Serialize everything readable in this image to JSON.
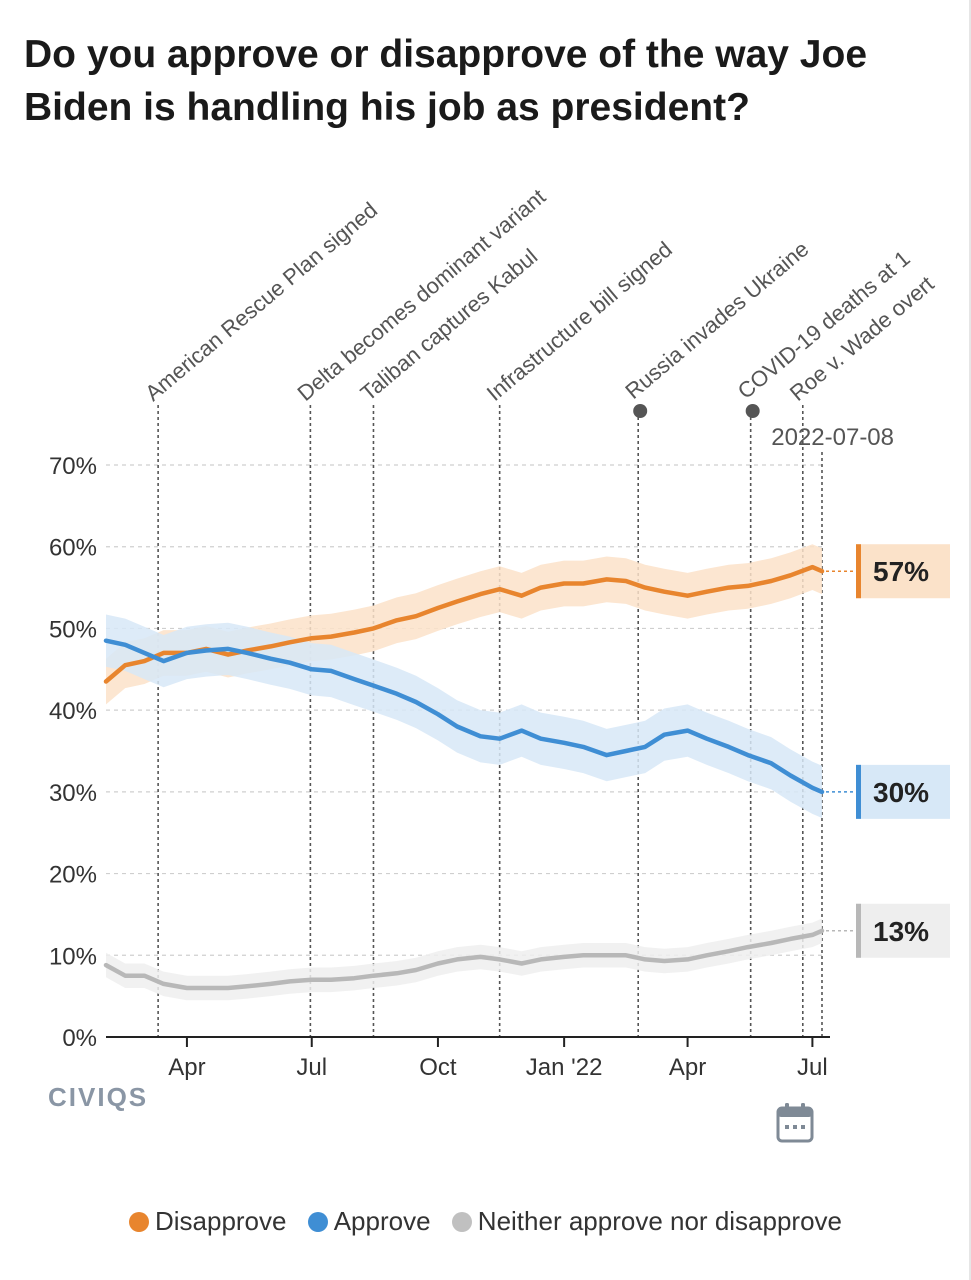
{
  "chart_data": {
    "type": "line",
    "title": "Do you approve or disapprove of the way Joe Biden is handling his job as president?",
    "y_ticks": [
      "0%",
      "10%",
      "20%",
      "30%",
      "40%",
      "50%",
      "60%",
      "70%"
    ],
    "ylim": [
      0,
      70
    ],
    "x_range": [
      "2021-02-01",
      "2022-07-08"
    ],
    "x_ticks": [
      {
        "date": "2021-04-01",
        "label": "Apr"
      },
      {
        "date": "2021-07-01",
        "label": "Jul"
      },
      {
        "date": "2021-10-01",
        "label": "Oct"
      },
      {
        "date": "2022-01-01",
        "label": "Jan '22"
      },
      {
        "date": "2022-04-01",
        "label": "Apr"
      },
      {
        "date": "2022-07-01",
        "label": "Jul"
      }
    ],
    "current_date_label": "2022-07-08",
    "events": [
      {
        "date": "2021-03-11",
        "label": "American Rescue Plan signed",
        "marker": false
      },
      {
        "date": "2021-06-30",
        "label": "Delta becomes dominant variant",
        "marker": false
      },
      {
        "date": "2021-08-15",
        "label": "Taliban captures Kabul",
        "marker": false
      },
      {
        "date": "2021-11-15",
        "label": "Infrastructure bill signed",
        "marker": false
      },
      {
        "date": "2022-02-24",
        "label": "Russia invades Ukraine",
        "marker": true
      },
      {
        "date": "2022-05-17",
        "label": "COVID-19 deaths at 1",
        "marker": true
      },
      {
        "date": "2022-06-24",
        "label": "Roe v. Wade overt",
        "marker": false
      }
    ],
    "series": [
      {
        "name": "Disapprove",
        "color": "#e8852e",
        "band_color": "#fbe2c9",
        "end_label": "57%",
        "band_half_width": 2.8,
        "points": [
          [
            "2021-02-01",
            43.5
          ],
          [
            "2021-02-15",
            45.5
          ],
          [
            "2021-03-01",
            46
          ],
          [
            "2021-03-15",
            47
          ],
          [
            "2021-04-01",
            47
          ],
          [
            "2021-04-15",
            47.5
          ],
          [
            "2021-05-01",
            46.8
          ],
          [
            "2021-05-15",
            47.3
          ],
          [
            "2021-06-01",
            47.8
          ],
          [
            "2021-06-15",
            48.3
          ],
          [
            "2021-07-01",
            48.8
          ],
          [
            "2021-07-15",
            49
          ],
          [
            "2021-08-01",
            49.5
          ],
          [
            "2021-08-15",
            50
          ],
          [
            "2021-09-01",
            51
          ],
          [
            "2021-09-15",
            51.5
          ],
          [
            "2021-10-01",
            52.5
          ],
          [
            "2021-10-15",
            53.3
          ],
          [
            "2021-11-01",
            54.2
          ],
          [
            "2021-11-15",
            54.8
          ],
          [
            "2021-12-01",
            54
          ],
          [
            "2021-12-15",
            55
          ],
          [
            "2022-01-01",
            55.5
          ],
          [
            "2022-01-15",
            55.5
          ],
          [
            "2022-02-01",
            56
          ],
          [
            "2022-02-15",
            55.8
          ],
          [
            "2022-03-01",
            55
          ],
          [
            "2022-03-15",
            54.5
          ],
          [
            "2022-04-01",
            54
          ],
          [
            "2022-04-15",
            54.5
          ],
          [
            "2022-05-01",
            55
          ],
          [
            "2022-05-15",
            55.2
          ],
          [
            "2022-06-01",
            55.8
          ],
          [
            "2022-06-15",
            56.5
          ],
          [
            "2022-07-01",
            57.5
          ],
          [
            "2022-07-08",
            57
          ]
        ]
      },
      {
        "name": "Approve",
        "color": "#3f8ed4",
        "band_color": "#d7e8f7",
        "end_label": "30%",
        "band_half_width": 3.2,
        "points": [
          [
            "2021-02-01",
            48.5
          ],
          [
            "2021-02-15",
            48
          ],
          [
            "2021-03-01",
            47
          ],
          [
            "2021-03-15",
            46
          ],
          [
            "2021-04-01",
            47
          ],
          [
            "2021-04-15",
            47.3
          ],
          [
            "2021-05-01",
            47.5
          ],
          [
            "2021-05-15",
            47
          ],
          [
            "2021-06-01",
            46.3
          ],
          [
            "2021-06-15",
            45.8
          ],
          [
            "2021-07-01",
            45
          ],
          [
            "2021-07-15",
            44.8
          ],
          [
            "2021-08-01",
            43.8
          ],
          [
            "2021-08-15",
            43
          ],
          [
            "2021-09-01",
            42
          ],
          [
            "2021-09-15",
            41
          ],
          [
            "2021-10-01",
            39.5
          ],
          [
            "2021-10-15",
            38
          ],
          [
            "2021-11-01",
            36.8
          ],
          [
            "2021-11-15",
            36.5
          ],
          [
            "2021-12-01",
            37.5
          ],
          [
            "2021-12-15",
            36.5
          ],
          [
            "2022-01-01",
            36
          ],
          [
            "2022-01-15",
            35.5
          ],
          [
            "2022-02-01",
            34.5
          ],
          [
            "2022-02-15",
            35
          ],
          [
            "2022-03-01",
            35.5
          ],
          [
            "2022-03-15",
            37
          ],
          [
            "2022-04-01",
            37.5
          ],
          [
            "2022-04-15",
            36.5
          ],
          [
            "2022-05-01",
            35.5
          ],
          [
            "2022-05-15",
            34.5
          ],
          [
            "2022-06-01",
            33.5
          ],
          [
            "2022-06-15",
            32
          ],
          [
            "2022-07-01",
            30.5
          ],
          [
            "2022-07-08",
            30
          ]
        ]
      },
      {
        "name": "Neither approve nor disapprove",
        "color": "#b8b8b8",
        "band_color": "#eeeeee",
        "end_label": "13%",
        "band_half_width": 1.5,
        "points": [
          [
            "2021-02-01",
            8.8
          ],
          [
            "2021-02-15",
            7.5
          ],
          [
            "2021-03-01",
            7.5
          ],
          [
            "2021-03-15",
            6.5
          ],
          [
            "2021-04-01",
            6
          ],
          [
            "2021-04-15",
            6
          ],
          [
            "2021-05-01",
            6
          ],
          [
            "2021-05-15",
            6.2
          ],
          [
            "2021-06-01",
            6.5
          ],
          [
            "2021-06-15",
            6.8
          ],
          [
            "2021-07-01",
            7
          ],
          [
            "2021-07-15",
            7
          ],
          [
            "2021-08-01",
            7.2
          ],
          [
            "2021-08-15",
            7.5
          ],
          [
            "2021-09-01",
            7.8
          ],
          [
            "2021-09-15",
            8.2
          ],
          [
            "2021-10-01",
            9
          ],
          [
            "2021-10-15",
            9.5
          ],
          [
            "2021-11-01",
            9.8
          ],
          [
            "2021-11-15",
            9.5
          ],
          [
            "2021-12-01",
            9
          ],
          [
            "2021-12-15",
            9.5
          ],
          [
            "2022-01-01",
            9.8
          ],
          [
            "2022-01-15",
            10
          ],
          [
            "2022-02-01",
            10
          ],
          [
            "2022-02-15",
            10
          ],
          [
            "2022-03-01",
            9.5
          ],
          [
            "2022-03-15",
            9.3
          ],
          [
            "2022-04-01",
            9.5
          ],
          [
            "2022-04-15",
            10
          ],
          [
            "2022-05-01",
            10.5
          ],
          [
            "2022-05-15",
            11
          ],
          [
            "2022-06-01",
            11.5
          ],
          [
            "2022-06-15",
            12
          ],
          [
            "2022-07-01",
            12.5
          ],
          [
            "2022-07-08",
            13
          ]
        ]
      }
    ]
  },
  "brand": "CIVIQS",
  "icons": {
    "calendar": "calendar-icon"
  }
}
